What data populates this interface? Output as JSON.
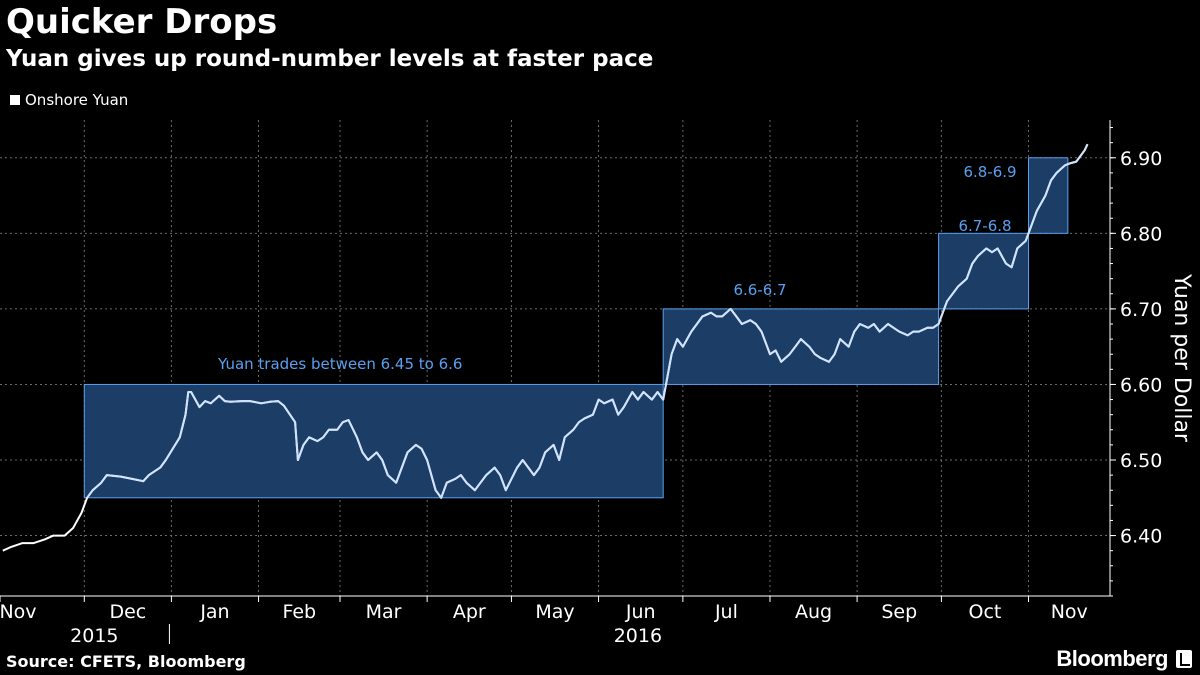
{
  "chart_data": {
    "type": "line",
    "title": "Quicker Drops",
    "subtitle": "Yuan gives up round-number levels at faster pace",
    "ylabel": "Yuan per Dollar",
    "ylim": [
      6.32,
      6.95
    ],
    "yticks": [
      6.4,
      6.5,
      6.6,
      6.7,
      6.8,
      6.9
    ],
    "ytick_labels": [
      "6.40",
      "6.50",
      "6.60",
      "6.70",
      "6.80",
      "6.90"
    ],
    "grid": true,
    "legend_position": "top-left",
    "xrange": [
      "2015-11-01",
      "2016-11-30"
    ],
    "month_ticks": [
      {
        "date": "2015-11-01",
        "label": "Nov"
      },
      {
        "date": "2015-12-01",
        "label": "Dec"
      },
      {
        "date": "2016-01-01",
        "label": "Jan"
      },
      {
        "date": "2016-02-01",
        "label": "Feb"
      },
      {
        "date": "2016-03-01",
        "label": "Mar"
      },
      {
        "date": "2016-04-01",
        "label": "Apr"
      },
      {
        "date": "2016-05-01",
        "label": "May"
      },
      {
        "date": "2016-06-01",
        "label": "Jun"
      },
      {
        "date": "2016-07-01",
        "label": "Jul"
      },
      {
        "date": "2016-08-01",
        "label": "Aug"
      },
      {
        "date": "2016-09-01",
        "label": "Sep"
      },
      {
        "date": "2016-10-01",
        "label": "Oct"
      },
      {
        "date": "2016-11-01",
        "label": "Nov"
      }
    ],
    "year_labels": [
      {
        "date": "2015-11-15",
        "label": "2015"
      },
      {
        "date": "2016-06-15",
        "label": "2016"
      }
    ],
    "year_divider_date": "2016-01-01",
    "series": [
      {
        "name": "Onshore Yuan",
        "color": "#ffffff",
        "highlight_color": "#cfe3ff",
        "points": [
          [
            "2015-11-02",
            6.38
          ],
          [
            "2015-11-05",
            6.385
          ],
          [
            "2015-11-09",
            6.39
          ],
          [
            "2015-11-13",
            6.39
          ],
          [
            "2015-11-17",
            6.395
          ],
          [
            "2015-11-20",
            6.4
          ],
          [
            "2015-11-24",
            6.4
          ],
          [
            "2015-11-27",
            6.41
          ],
          [
            "2015-11-30",
            6.43
          ],
          [
            "2015-12-02",
            6.45
          ],
          [
            "2015-12-04",
            6.46
          ],
          [
            "2015-12-07",
            6.47
          ],
          [
            "2015-12-09",
            6.48
          ],
          [
            "2015-12-14",
            6.478
          ],
          [
            "2015-12-18",
            6.475
          ],
          [
            "2015-12-22",
            6.472
          ],
          [
            "2015-12-24",
            6.48
          ],
          [
            "2015-12-28",
            6.49
          ],
          [
            "2015-12-30",
            6.5
          ],
          [
            "2016-01-04",
            6.53
          ],
          [
            "2016-01-06",
            6.56
          ],
          [
            "2016-01-07",
            6.59
          ],
          [
            "2016-01-08",
            6.59
          ],
          [
            "2016-01-11",
            6.57
          ],
          [
            "2016-01-13",
            6.578
          ],
          [
            "2016-01-15",
            6.575
          ],
          [
            "2016-01-18",
            6.585
          ],
          [
            "2016-01-20",
            6.578
          ],
          [
            "2016-01-22",
            6.577
          ],
          [
            "2016-01-26",
            6.578
          ],
          [
            "2016-01-29",
            6.578
          ],
          [
            "2016-02-02",
            6.575
          ],
          [
            "2016-02-05",
            6.577
          ],
          [
            "2016-02-08",
            6.578
          ],
          [
            "2016-02-10",
            6.572
          ],
          [
            "2016-02-14",
            6.55
          ],
          [
            "2016-02-15",
            6.5
          ],
          [
            "2016-02-17",
            6.52
          ],
          [
            "2016-02-19",
            6.53
          ],
          [
            "2016-02-22",
            6.525
          ],
          [
            "2016-02-24",
            6.53
          ],
          [
            "2016-02-26",
            6.54
          ],
          [
            "2016-02-29",
            6.54
          ],
          [
            "2016-03-02",
            6.55
          ],
          [
            "2016-03-04",
            6.553
          ],
          [
            "2016-03-07",
            6.53
          ],
          [
            "2016-03-09",
            6.51
          ],
          [
            "2016-03-11",
            6.5
          ],
          [
            "2016-03-14",
            6.51
          ],
          [
            "2016-03-16",
            6.5
          ],
          [
            "2016-03-18",
            6.48
          ],
          [
            "2016-03-21",
            6.47
          ],
          [
            "2016-03-23",
            6.49
          ],
          [
            "2016-03-25",
            6.51
          ],
          [
            "2016-03-28",
            6.52
          ],
          [
            "2016-03-30",
            6.515
          ],
          [
            "2016-04-01",
            6.5
          ],
          [
            "2016-04-04",
            6.46
          ],
          [
            "2016-04-06",
            6.45
          ],
          [
            "2016-04-08",
            6.47
          ],
          [
            "2016-04-11",
            6.475
          ],
          [
            "2016-04-13",
            6.48
          ],
          [
            "2016-04-15",
            6.47
          ],
          [
            "2016-04-18",
            6.46
          ],
          [
            "2016-04-20",
            6.47
          ],
          [
            "2016-04-22",
            6.48
          ],
          [
            "2016-04-25",
            6.49
          ],
          [
            "2016-04-27",
            6.48
          ],
          [
            "2016-04-29",
            6.46
          ],
          [
            "2016-05-03",
            6.49
          ],
          [
            "2016-05-05",
            6.5
          ],
          [
            "2016-05-09",
            6.48
          ],
          [
            "2016-05-11",
            6.49
          ],
          [
            "2016-05-13",
            6.51
          ],
          [
            "2016-05-16",
            6.52
          ],
          [
            "2016-05-18",
            6.5
          ],
          [
            "2016-05-20",
            6.53
          ],
          [
            "2016-05-23",
            6.54
          ],
          [
            "2016-05-25",
            6.55
          ],
          [
            "2016-05-27",
            6.555
          ],
          [
            "2016-05-30",
            6.56
          ],
          [
            "2016-06-01",
            6.58
          ],
          [
            "2016-06-03",
            6.575
          ],
          [
            "2016-06-06",
            6.58
          ],
          [
            "2016-06-08",
            6.56
          ],
          [
            "2016-06-10",
            6.57
          ],
          [
            "2016-06-13",
            6.59
          ],
          [
            "2016-06-15",
            6.58
          ],
          [
            "2016-06-17",
            6.59
          ],
          [
            "2016-06-20",
            6.58
          ],
          [
            "2016-06-22",
            6.59
          ],
          [
            "2016-06-24",
            6.58
          ],
          [
            "2016-06-27",
            6.64
          ],
          [
            "2016-06-29",
            6.66
          ],
          [
            "2016-07-01",
            6.65
          ],
          [
            "2016-07-04",
            6.67
          ],
          [
            "2016-07-06",
            6.68
          ],
          [
            "2016-07-08",
            6.69
          ],
          [
            "2016-07-11",
            6.695
          ],
          [
            "2016-07-13",
            6.69
          ],
          [
            "2016-07-15",
            6.69
          ],
          [
            "2016-07-18",
            6.7
          ],
          [
            "2016-07-20",
            6.69
          ],
          [
            "2016-07-22",
            6.68
          ],
          [
            "2016-07-25",
            6.685
          ],
          [
            "2016-07-27",
            6.68
          ],
          [
            "2016-07-29",
            6.67
          ],
          [
            "2016-08-01",
            6.64
          ],
          [
            "2016-08-03",
            6.645
          ],
          [
            "2016-08-05",
            6.63
          ],
          [
            "2016-08-08",
            6.64
          ],
          [
            "2016-08-10",
            6.65
          ],
          [
            "2016-08-12",
            6.66
          ],
          [
            "2016-08-15",
            6.65
          ],
          [
            "2016-08-17",
            6.64
          ],
          [
            "2016-08-19",
            6.635
          ],
          [
            "2016-08-22",
            6.63
          ],
          [
            "2016-08-24",
            6.64
          ],
          [
            "2016-08-26",
            6.66
          ],
          [
            "2016-08-29",
            6.65
          ],
          [
            "2016-08-31",
            6.67
          ],
          [
            "2016-09-02",
            6.68
          ],
          [
            "2016-09-05",
            6.675
          ],
          [
            "2016-09-07",
            6.68
          ],
          [
            "2016-09-09",
            6.67
          ],
          [
            "2016-09-12",
            6.68
          ],
          [
            "2016-09-14",
            6.675
          ],
          [
            "2016-09-16",
            6.67
          ],
          [
            "2016-09-19",
            6.665
          ],
          [
            "2016-09-21",
            6.67
          ],
          [
            "2016-09-23",
            6.67
          ],
          [
            "2016-09-26",
            6.675
          ],
          [
            "2016-09-28",
            6.675
          ],
          [
            "2016-09-30",
            6.68
          ],
          [
            "2016-10-03",
            6.71
          ],
          [
            "2016-10-05",
            6.72
          ],
          [
            "2016-10-07",
            6.73
          ],
          [
            "2016-10-10",
            6.74
          ],
          [
            "2016-10-12",
            6.76
          ],
          [
            "2016-10-14",
            6.77
          ],
          [
            "2016-10-17",
            6.78
          ],
          [
            "2016-10-19",
            6.775
          ],
          [
            "2016-10-21",
            6.78
          ],
          [
            "2016-10-24",
            6.76
          ],
          [
            "2016-10-26",
            6.755
          ],
          [
            "2016-10-28",
            6.78
          ],
          [
            "2016-10-31",
            6.79
          ],
          [
            "2016-11-02",
            6.81
          ],
          [
            "2016-11-04",
            6.83
          ],
          [
            "2016-11-07",
            6.85
          ],
          [
            "2016-11-09",
            6.87
          ],
          [
            "2016-11-11",
            6.88
          ],
          [
            "2016-11-14",
            6.89
          ],
          [
            "2016-11-16",
            6.893
          ],
          [
            "2016-11-18",
            6.895
          ],
          [
            "2016-11-21",
            6.91
          ],
          [
            "2016-11-22",
            6.918
          ]
        ]
      }
    ],
    "ranges": [
      {
        "start": "2015-12-01",
        "end": "2016-06-24",
        "low": 6.45,
        "high": 6.6,
        "label": "Yuan trades between 6.45 to 6.6"
      },
      {
        "start": "2016-06-24",
        "end": "2016-09-30",
        "low": 6.6,
        "high": 6.7,
        "label": "6.6-6.7"
      },
      {
        "start": "2016-09-30",
        "end": "2016-11-01",
        "low": 6.7,
        "high": 6.8,
        "label": "6.7-6.8"
      },
      {
        "start": "2016-11-01",
        "end": "2016-11-15",
        "low": 6.8,
        "high": 6.9,
        "label": "6.8-6.9"
      }
    ],
    "range_fill_color": "#1c3d66",
    "range_stroke_color": "#5aa0f0"
  },
  "legend": {
    "label": "Onshore Yuan"
  },
  "source": "Source: CFETS, Bloomberg",
  "brand": "Bloomberg"
}
